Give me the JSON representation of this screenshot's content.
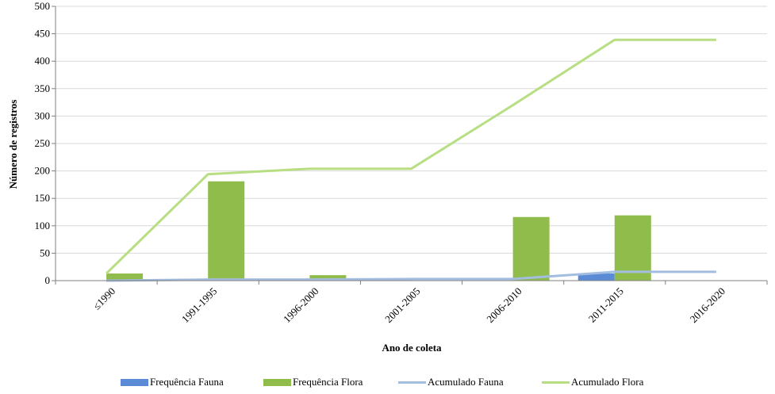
{
  "chart_data": {
    "type": "bar",
    "categories": [
      "≤1990",
      "1991-1995",
      "1996-2000",
      "2001-2005",
      "2006-2010",
      "2011-2015",
      "2016-2020"
    ],
    "series": [
      {
        "name": "Frequência Fauna",
        "kind": "bar",
        "color": "#5b8bd6",
        "values": [
          0,
          2,
          0,
          1,
          0,
          13,
          0
        ]
      },
      {
        "name": "Frequência Flora",
        "kind": "bar",
        "color": "#8fbc4a",
        "values": [
          13,
          181,
          10,
          0,
          116,
          119,
          0
        ]
      },
      {
        "name": "Acumulado Fauna",
        "kind": "line",
        "color": "#a3bde0",
        "values": [
          0,
          2,
          2,
          3,
          3,
          16,
          16
        ]
      },
      {
        "name": "Acumulado Flora",
        "kind": "line",
        "color": "#b8de84",
        "values": [
          13,
          194,
          204,
          204,
          320,
          439,
          439
        ]
      }
    ],
    "xlabel": "Ano de coleta",
    "ylabel": "Número de registros",
    "ylim": [
      0,
      500
    ],
    "yticks": [
      0,
      50,
      100,
      150,
      200,
      250,
      300,
      350,
      400,
      450,
      500
    ],
    "grid": true,
    "legend_position": "bottom"
  }
}
